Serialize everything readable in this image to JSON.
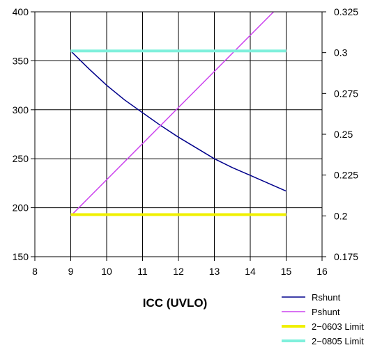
{
  "chart_data": {
    "type": "line",
    "title": "",
    "xlabel": "ICC (UVLO)",
    "ylabel": "",
    "y2label": "",
    "xlim": [
      8,
      16
    ],
    "ylim": [
      150,
      400
    ],
    "y2lim": [
      0.175,
      0.325
    ],
    "grid": true,
    "legend_position": "bottom-right",
    "x_ticks": [
      "8",
      "9",
      "10",
      "11",
      "12",
      "13",
      "14",
      "15",
      "16"
    ],
    "y_ticks": [
      "150",
      "200",
      "250",
      "300",
      "350",
      "400"
    ],
    "y2_ticks": [
      "0.175",
      "0.2",
      "0.225",
      "0.25",
      "0.275",
      "0.3",
      "0.325"
    ],
    "series": [
      {
        "name": "Rshunt",
        "axis": "left",
        "color": "#00008b",
        "width": 1.5,
        "x": [
          9,
          9.5,
          10,
          10.5,
          11,
          11.5,
          12,
          12.5,
          13,
          13.5,
          14,
          14.5,
          15
        ],
        "y": [
          360,
          342,
          325,
          310,
          297,
          284,
          272,
          261,
          250,
          241,
          233,
          225,
          217
        ]
      },
      {
        "name": "Pshunt",
        "axis": "right",
        "color": "#cc44ee",
        "width": 1.5,
        "x": [
          9,
          14.65
        ],
        "y": [
          0.2,
          0.325
        ]
      },
      {
        "name": "2−0603 Limit",
        "axis": "left",
        "color": "#f0f000",
        "width": 4,
        "x": [
          9,
          15
        ],
        "y": [
          193,
          193
        ]
      },
      {
        "name": "2−0805 Limit",
        "axis": "left",
        "color": "#7ff0dc",
        "width": 4,
        "x": [
          9,
          15
        ],
        "y": [
          360,
          360
        ]
      }
    ]
  }
}
